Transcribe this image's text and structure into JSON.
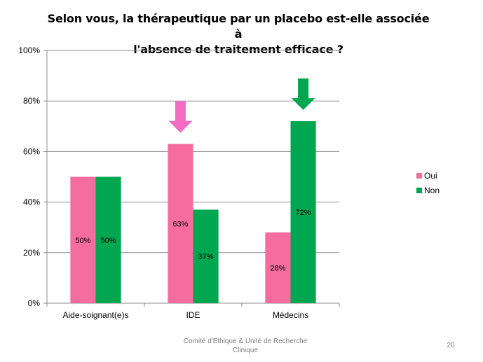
{
  "chart_data": {
    "type": "bar",
    "title": [
      "Selon vous, la thérapeutique par un placebo est-elle associée à",
      "l'absence de traitement efficace ?"
    ],
    "categories": [
      "Aide-soignant(e)s",
      "IDE",
      "Médecins"
    ],
    "series": [
      {
        "name": "Oui",
        "values": [
          50,
          63,
          28
        ],
        "labels": [
          "50%",
          "63%",
          "28%"
        ]
      },
      {
        "name": "Non",
        "values": [
          50,
          37,
          72
        ],
        "labels": [
          "50%",
          "37%",
          "72%"
        ]
      }
    ],
    "ylim": [
      0,
      100
    ],
    "yticks": [
      0,
      20,
      40,
      60,
      80,
      100
    ],
    "ytick_labels": [
      "0%",
      "20%",
      "40%",
      "60%",
      "80%",
      "100%"
    ],
    "grid": true,
    "legend_position": "right",
    "colors": {
      "Oui": "#F46D9C",
      "Non": "#00A650",
      "arrow_pink": "#F46DC4",
      "arrow_green": "#00A650"
    },
    "annotations": [
      {
        "type": "down-arrow-icon",
        "category": "IDE",
        "series": "Oui",
        "color": "#F46DC4"
      },
      {
        "type": "down-arrow-icon",
        "category": "Médecins",
        "series": "Non",
        "color": "#00A650"
      }
    ]
  },
  "footer": {
    "text": [
      "Comité d'Ethique & Unité de Recherche",
      "Clinique"
    ],
    "page_number": "20"
  }
}
